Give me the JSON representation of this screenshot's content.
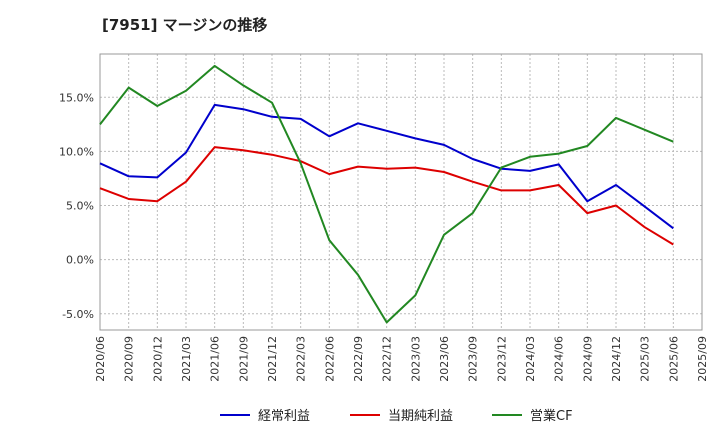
{
  "chart_data": {
    "type": "line",
    "title": "[7951]  マージンの推移",
    "xlabel": "",
    "ylabel": "",
    "ylim": [
      -6.5,
      19.0
    ],
    "yticks": [
      -5.0,
      0.0,
      5.0,
      10.0,
      15.0
    ],
    "ytick_labels": [
      "-5.0%",
      "0.0%",
      "5.0%",
      "10.0%",
      "15.0%"
    ],
    "grid": true,
    "legend_position": "bottom",
    "categories": [
      "2020/06",
      "2020/09",
      "2020/12",
      "2021/03",
      "2021/06",
      "2021/09",
      "2021/12",
      "2022/03",
      "2022/06",
      "2022/09",
      "2022/12",
      "2023/03",
      "2023/06",
      "2023/09",
      "2023/12",
      "2024/03",
      "2024/06",
      "2024/09",
      "2024/12",
      "2025/03",
      "2025/06",
      "2025/09"
    ],
    "series": [
      {
        "name": "経常利益",
        "color": "#0000cc",
        "values": [
          8.9,
          7.7,
          7.6,
          9.9,
          14.3,
          13.9,
          13.2,
          13.0,
          11.4,
          12.6,
          11.9,
          11.2,
          10.6,
          9.3,
          8.4,
          8.2,
          8.8,
          5.4,
          6.9,
          4.9,
          2.9,
          null
        ]
      },
      {
        "name": "当期純利益",
        "color": "#dd0000",
        "values": [
          6.6,
          5.6,
          5.4,
          7.2,
          10.4,
          10.1,
          9.7,
          9.1,
          7.9,
          8.6,
          8.4,
          8.5,
          8.1,
          7.2,
          6.4,
          6.4,
          6.9,
          4.3,
          5.0,
          3.0,
          1.4,
          null
        ]
      },
      {
        "name": "営業CF",
        "color": "#228822",
        "values": [
          12.5,
          15.9,
          14.2,
          15.6,
          17.9,
          16.1,
          14.5,
          8.9,
          1.8,
          -1.4,
          -5.8,
          -3.3,
          2.3,
          4.3,
          8.5,
          9.5,
          9.8,
          10.5,
          13.1,
          12.0,
          10.9,
          null
        ]
      }
    ]
  }
}
